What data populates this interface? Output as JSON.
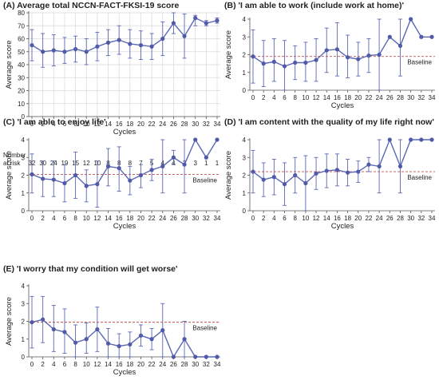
{
  "colors": {
    "line": "#5b67b4",
    "marker": "#4f5aa8",
    "baseline": "#c0504d",
    "axis": "#555555",
    "grid": "#d9d9d9"
  },
  "risk_table": {
    "label_line1": "Number",
    "label_line2": "at risk",
    "values": [
      "32",
      "30",
      "24",
      "19",
      "15",
      "12",
      "10",
      "8",
      "8",
      "8",
      "7",
      "5",
      "4",
      "4",
      "3",
      "3",
      "1",
      "1"
    ]
  },
  "chart_data": [
    {
      "type": "line",
      "title": "(A) Average total NCCN-FACT-FKSI-19 score",
      "xlabel": "Cycles",
      "ylabel": "Average score",
      "ylim": [
        0,
        80
      ],
      "yticks": [
        "0",
        "10",
        "20",
        "30",
        "40",
        "50",
        "60",
        "70",
        "80"
      ],
      "grid": true,
      "baseline_label": "",
      "x": [
        "0",
        "2",
        "4",
        "6",
        "8",
        "10",
        "12",
        "14",
        "16",
        "18",
        "20",
        "22",
        "24",
        "26",
        "28",
        "30",
        "32",
        "34"
      ],
      "values": [
        55,
        50,
        51,
        50,
        52,
        50,
        54,
        57,
        59,
        56,
        55,
        54,
        60,
        72,
        62,
        76,
        72,
        74
      ],
      "error_low": [
        43,
        38,
        39,
        41,
        42,
        40,
        43,
        47,
        48,
        45,
        44,
        44,
        47,
        64,
        45,
        70,
        70,
        72
      ],
      "error_high": [
        67,
        64,
        63,
        61,
        62,
        60,
        65,
        67,
        70,
        67,
        66,
        64,
        73,
        80,
        79,
        78,
        74,
        76
      ]
    },
    {
      "type": "line",
      "title": "(B) 'I am able to work (include work at home)'",
      "xlabel": "Cycles",
      "ylabel": "Average score",
      "ylim": [
        0,
        4
      ],
      "yticks": [
        "0",
        "1",
        "2",
        "3",
        "4"
      ],
      "grid": false,
      "baseline": 1.9,
      "baseline_label": "Baseline",
      "x": [
        "0",
        "2",
        "4",
        "6",
        "8",
        "10",
        "12",
        "14",
        "16",
        "18",
        "20",
        "22",
        "24",
        "26",
        "28",
        "30",
        "32",
        "34"
      ],
      "values": [
        1.9,
        1.5,
        1.6,
        1.35,
        1.55,
        1.55,
        1.7,
        2.25,
        2.3,
        1.85,
        1.75,
        1.95,
        2.0,
        3.0,
        2.5,
        4.0,
        3.0,
        3.0
      ],
      "error_low": [
        0.4,
        0.2,
        0.5,
        0.0,
        0.6,
        0.5,
        0.5,
        1.0,
        0.8,
        0.7,
        0.8,
        1.0,
        0.0,
        3.0,
        0.8,
        4.0,
        3.0,
        3.0
      ],
      "error_high": [
        3.4,
        2.8,
        2.9,
        2.8,
        2.5,
        2.7,
        2.9,
        3.5,
        3.8,
        3.1,
        2.7,
        2.9,
        4.0,
        3.0,
        4.0,
        4.0,
        3.0,
        3.0
      ]
    },
    {
      "type": "line",
      "title": "(C) 'I am able to enjoy life'",
      "xlabel": "Cycles",
      "ylabel": "Average score",
      "ylim": [
        0,
        4
      ],
      "yticks": [
        "0",
        "1",
        "2",
        "3",
        "4"
      ],
      "grid": false,
      "baseline": 2.05,
      "baseline_label": "Baseline",
      "x": [
        "0",
        "2",
        "4",
        "6",
        "8",
        "10",
        "12",
        "14",
        "16",
        "18",
        "20",
        "22",
        "24",
        "26",
        "28",
        "30",
        "32",
        "34"
      ],
      "values": [
        2.05,
        1.8,
        1.75,
        1.55,
        2.0,
        1.4,
        1.5,
        2.5,
        2.4,
        1.7,
        2.0,
        2.3,
        2.5,
        3.0,
        2.6,
        4.0,
        3.0,
        4.0
      ],
      "error_low": [
        1.0,
        0.8,
        0.8,
        0.5,
        0.7,
        0.5,
        0.2,
        1.4,
        1.1,
        0.9,
        1.3,
        1.7,
        1.0,
        2.6,
        1.0,
        4.0,
        3.0,
        4.0
      ],
      "error_high": [
        3.2,
        2.8,
        2.8,
        2.6,
        3.3,
        2.3,
        2.8,
        3.5,
        3.6,
        2.5,
        2.6,
        2.9,
        4.0,
        3.4,
        4.0,
        4.0,
        3.0,
        4.0
      ]
    },
    {
      "type": "line",
      "title": "(D) 'I am content with the quality of my life right now'",
      "xlabel": "Cycles",
      "ylabel": "Average score",
      "ylim": [
        0,
        4
      ],
      "yticks": [
        "0",
        "1",
        "2",
        "3",
        "4"
      ],
      "grid": false,
      "baseline": 2.2,
      "baseline_label": "Baseline",
      "x": [
        "0",
        "2",
        "4",
        "6",
        "8",
        "10",
        "12",
        "14",
        "16",
        "18",
        "20",
        "22",
        "24",
        "26",
        "28",
        "30",
        "32",
        "34"
      ],
      "values": [
        2.2,
        1.75,
        1.9,
        1.5,
        2.0,
        1.55,
        2.1,
        2.25,
        2.3,
        2.15,
        2.2,
        2.6,
        2.5,
        4.0,
        2.5,
        4.0,
        4.0,
        4.0
      ],
      "error_low": [
        1.0,
        0.8,
        0.9,
        0.3,
        1.0,
        0.0,
        1.2,
        1.3,
        1.4,
        1.4,
        1.6,
        2.2,
        1.0,
        4.0,
        1.0,
        4.0,
        4.0,
        4.0
      ],
      "error_high": [
        3.4,
        2.7,
        2.9,
        2.7,
        3.0,
        3.1,
        3.0,
        3.2,
        3.2,
        2.9,
        2.8,
        3.0,
        4.0,
        4.0,
        4.0,
        4.0,
        4.0,
        4.0
      ]
    },
    {
      "type": "line",
      "title": "(E) 'I worry that my condition will get worse'",
      "xlabel": "Cycles",
      "ylabel": "Average score",
      "ylim": [
        0,
        4
      ],
      "yticks": [
        "0",
        "1",
        "2",
        "3",
        "4"
      ],
      "grid": false,
      "baseline": 1.95,
      "baseline_label": "Baseline",
      "x": [
        "0",
        "2",
        "4",
        "6",
        "8",
        "10",
        "12",
        "14",
        "16",
        "18",
        "20",
        "22",
        "24",
        "26",
        "28",
        "30",
        "32",
        "34"
      ],
      "values": [
        1.95,
        2.1,
        1.55,
        1.4,
        0.8,
        1.0,
        1.55,
        0.75,
        0.6,
        0.7,
        1.2,
        1.0,
        1.5,
        0.0,
        1.0,
        0.0,
        0.0,
        0.0
      ],
      "error_low": [
        0.5,
        0.8,
        0.3,
        0.2,
        0.0,
        0.2,
        0.3,
        0.0,
        0.0,
        0.0,
        0.6,
        0.4,
        0.0,
        0.0,
        0.0,
        0.0,
        0.0,
        0.0
      ],
      "error_high": [
        3.4,
        3.4,
        2.9,
        2.7,
        1.8,
        1.9,
        2.8,
        1.6,
        1.3,
        1.4,
        1.8,
        1.6,
        3.0,
        0.0,
        2.0,
        0.0,
        0.0,
        0.0
      ]
    }
  ]
}
